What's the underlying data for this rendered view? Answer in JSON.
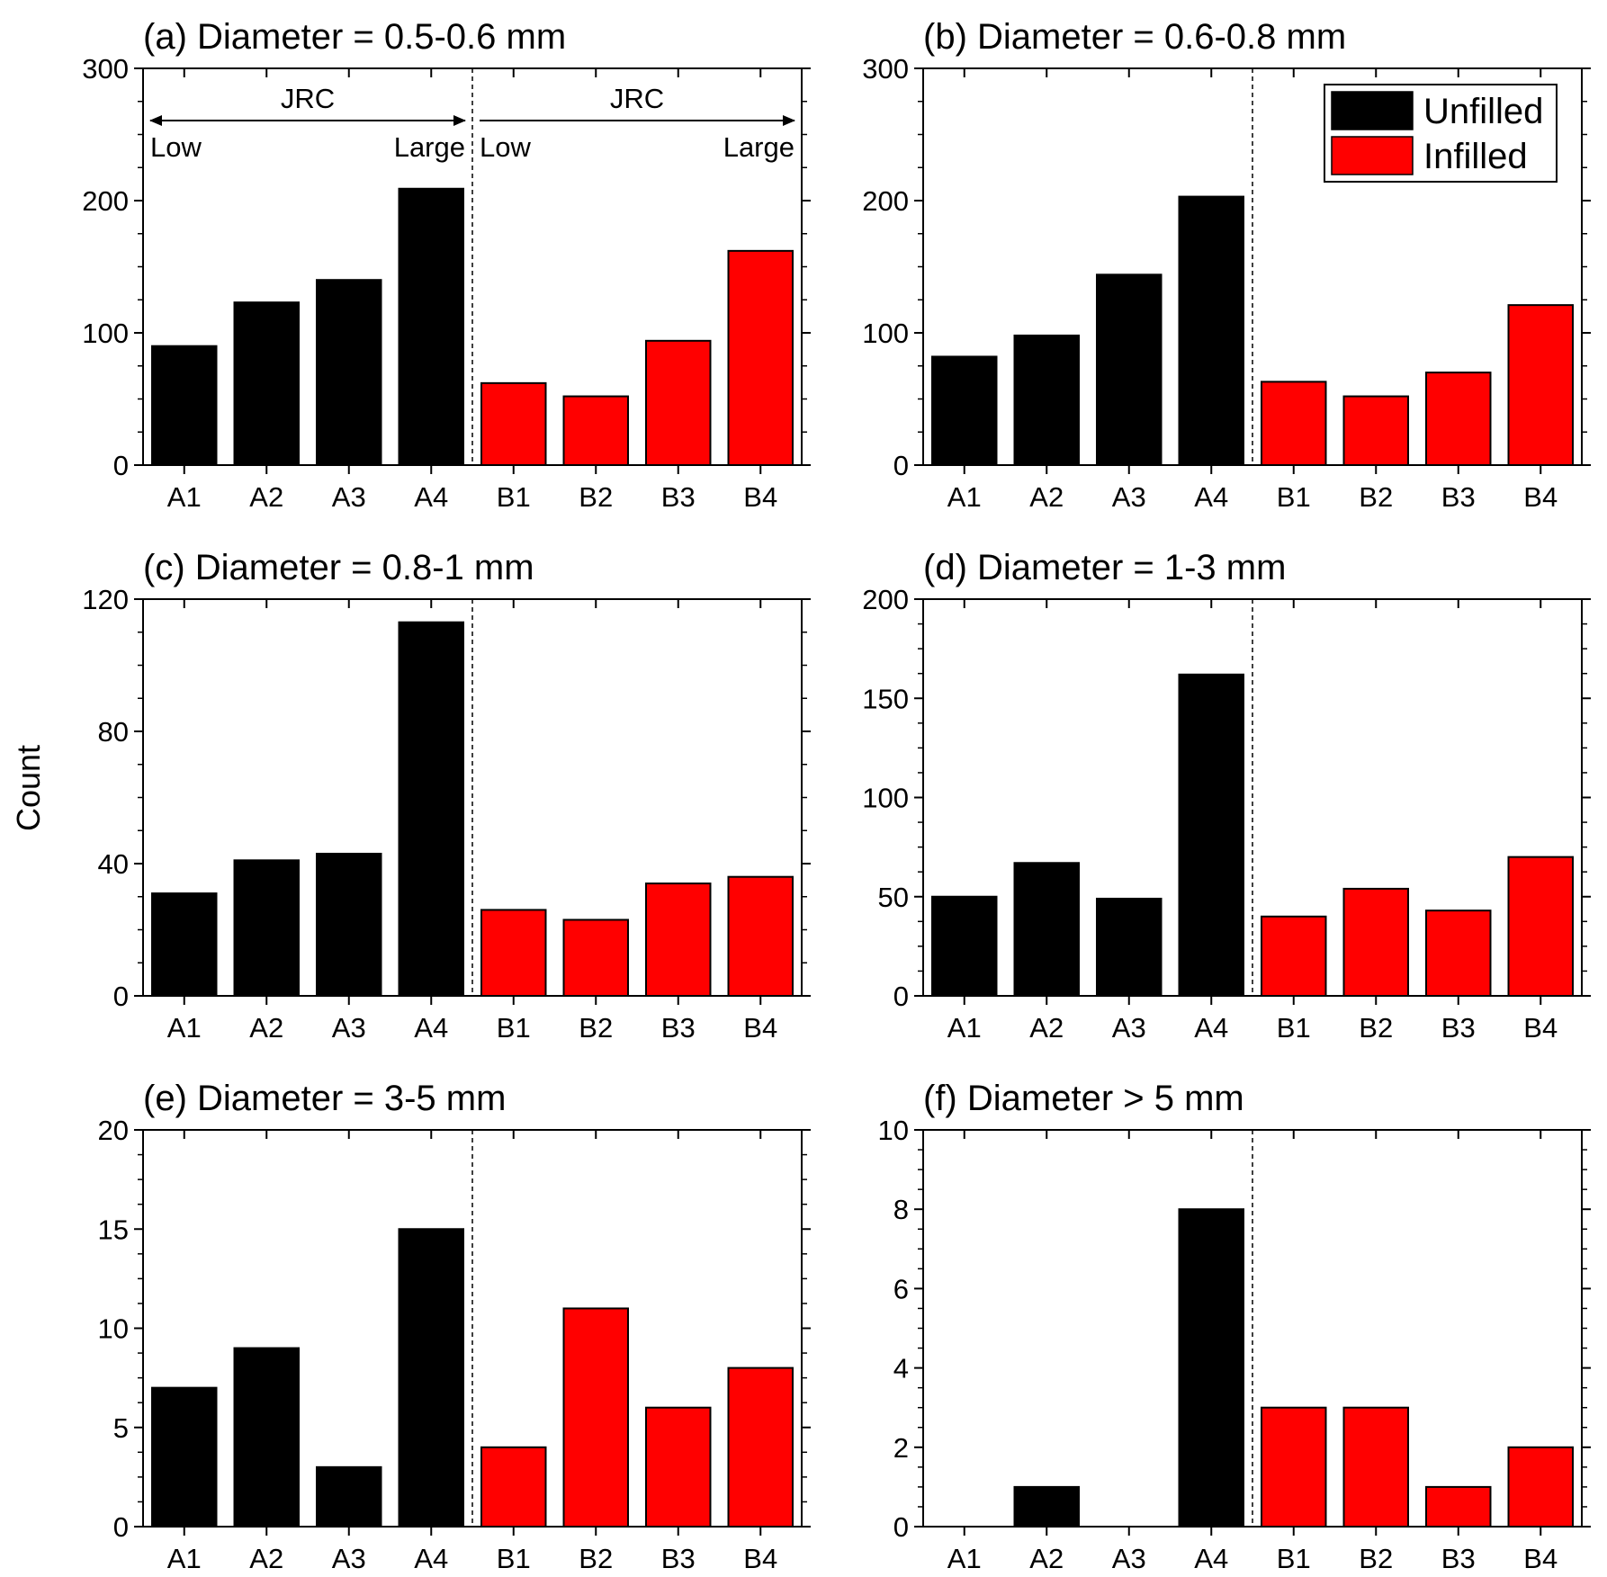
{
  "figure": {
    "ylabel": "Count",
    "colors": {
      "unfilled": "#000000",
      "infilled": "#ff0000"
    },
    "legend": {
      "items": [
        {
          "label": "Unfilled",
          "color": "#000000"
        },
        {
          "label": "Infilled",
          "color": "#ff0000"
        }
      ]
    },
    "annotation": {
      "left": {
        "label": "JRC",
        "low": "Low",
        "high": "Large"
      },
      "right": {
        "label": "JRC",
        "low": "Low",
        "high": "Large"
      }
    }
  },
  "chart_data": [
    {
      "type": "bar",
      "title": "(a) Diameter = 0.5-0.6 mm",
      "categories": [
        "A1",
        "A2",
        "A3",
        "A4",
        "B1",
        "B2",
        "B3",
        "B4"
      ],
      "values": [
        90,
        123,
        140,
        209,
        62,
        52,
        94,
        162
      ],
      "ylim": [
        0,
        300
      ],
      "yticks": [
        0,
        100,
        200,
        300
      ],
      "ylabel": "",
      "xlabel": ""
    },
    {
      "type": "bar",
      "title": "(b) Diameter = 0.6-0.8 mm",
      "categories": [
        "A1",
        "A2",
        "A3",
        "A4",
        "B1",
        "B2",
        "B3",
        "B4"
      ],
      "values": [
        82,
        98,
        144,
        203,
        63,
        52,
        70,
        121
      ],
      "ylim": [
        0,
        300
      ],
      "yticks": [
        0,
        100,
        200,
        300
      ],
      "ylabel": "",
      "xlabel": ""
    },
    {
      "type": "bar",
      "title": "(c) Diameter = 0.8-1 mm",
      "categories": [
        "A1",
        "A2",
        "A3",
        "A4",
        "B1",
        "B2",
        "B3",
        "B4"
      ],
      "values": [
        31,
        41,
        43,
        113,
        26,
        23,
        34,
        36
      ],
      "ylim": [
        0,
        120
      ],
      "yticks": [
        0,
        40,
        80,
        120
      ],
      "ylabel": "Count",
      "xlabel": ""
    },
    {
      "type": "bar",
      "title": "(d) Diameter = 1-3 mm",
      "categories": [
        "A1",
        "A2",
        "A3",
        "A4",
        "B1",
        "B2",
        "B3",
        "B4"
      ],
      "values": [
        50,
        67,
        49,
        162,
        40,
        54,
        43,
        70
      ],
      "ylim": [
        0,
        200
      ],
      "yticks": [
        0,
        50,
        100,
        150,
        200
      ],
      "ylabel": "",
      "xlabel": ""
    },
    {
      "type": "bar",
      "title": "(e) Diameter = 3-5 mm",
      "categories": [
        "A1",
        "A2",
        "A3",
        "A4",
        "B1",
        "B2",
        "B3",
        "B4"
      ],
      "values": [
        7,
        9,
        3,
        15,
        4,
        11,
        6,
        8
      ],
      "ylim": [
        0,
        20
      ],
      "yticks": [
        0,
        5,
        10,
        15,
        20
      ],
      "ylabel": "",
      "xlabel": ""
    },
    {
      "type": "bar",
      "title": "(f) Diameter > 5 mm",
      "categories": [
        "A1",
        "A2",
        "A3",
        "A4",
        "B1",
        "B2",
        "B3",
        "B4"
      ],
      "values": [
        0,
        1,
        0,
        8,
        3,
        3,
        1,
        2
      ],
      "ylim": [
        0,
        10
      ],
      "yticks": [
        0,
        2,
        4,
        6,
        8,
        10
      ],
      "ylabel": "",
      "xlabel": ""
    }
  ]
}
